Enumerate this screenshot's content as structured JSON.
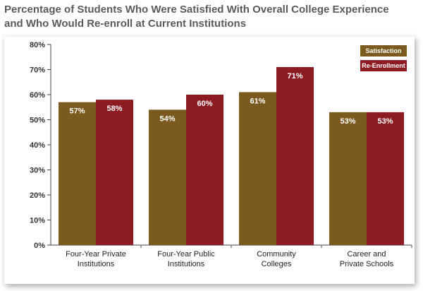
{
  "chart_data": {
    "type": "bar",
    "title": "Percentage of Students Who Were Satisfied With Overall College Experience and Who Would Re-enroll at Current Institutions",
    "title_lines": [
      "Percentage of Students Who Were Satisfied With Overall College Experience",
      "and Who Would Re-enroll at Current Institutions"
    ],
    "categories": [
      [
        "Four-Year Private",
        "Institutions"
      ],
      [
        "Four-Year Public",
        "Institutions"
      ],
      [
        "Community",
        "Colleges"
      ],
      [
        "Career and",
        "Private Schools"
      ]
    ],
    "series": [
      {
        "name": "Satisfaction",
        "values": [
          57,
          54,
          61,
          53
        ],
        "color": "#7a5a1f"
      },
      {
        "name": "Re-Enrollment",
        "values": [
          58,
          60,
          71,
          53
        ],
        "color": "#8c1c22"
      }
    ],
    "data_labels": [
      [
        "57%",
        "54%",
        "61%",
        "53%"
      ],
      [
        "58%",
        "60%",
        "71%",
        "53%"
      ]
    ],
    "yticks": [
      "0%",
      "10%",
      "20%",
      "30%",
      "40%",
      "50%",
      "60%",
      "70%",
      "80%"
    ],
    "ylim": [
      0,
      80
    ],
    "grid": false,
    "legend_position": "top-right"
  }
}
